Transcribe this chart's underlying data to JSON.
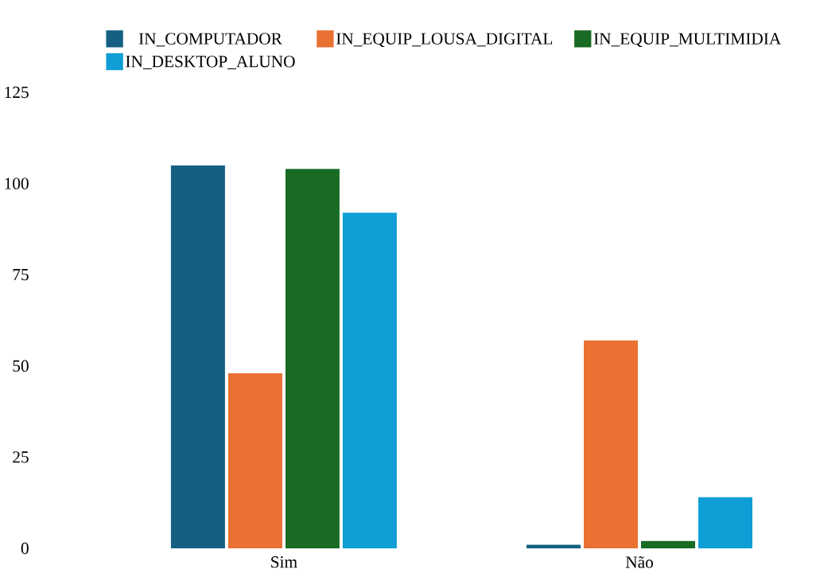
{
  "chart_data": {
    "type": "bar",
    "categories": [
      "Sim",
      "Não"
    ],
    "series": [
      {
        "name": "IN_COMPUTADOR",
        "color": "#156082",
        "values": [
          105,
          1
        ]
      },
      {
        "name": "IN_EQUIP_LOUSA_DIGITAL",
        "color": "#e97132",
        "values": [
          48,
          57
        ]
      },
      {
        "name": "IN_EQUIP_MULTIMIDIA",
        "color": "#196b24",
        "values": [
          104,
          2
        ]
      },
      {
        "name": "IN_DESKTOP_ALUNO",
        "color": "#0f9ed5",
        "values": [
          92,
          14
        ]
      }
    ],
    "ylim": [
      0,
      125
    ],
    "yticks": [
      0,
      25,
      50,
      75,
      100,
      125
    ],
    "legend": "top"
  }
}
